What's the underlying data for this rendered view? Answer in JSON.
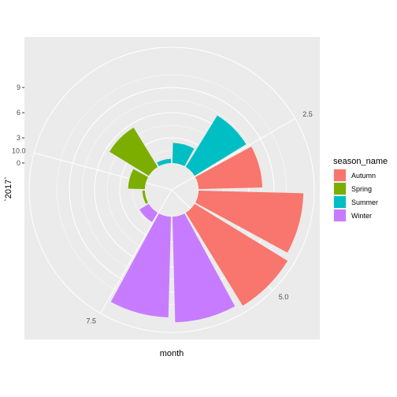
{
  "chart_data": {
    "type": "bar",
    "coord": "polar",
    "xlabel": "month",
    "ylabel": "`2017`",
    "theta_ticks": [
      "2.5",
      "5.0",
      "7.5",
      "10.0"
    ],
    "theta_tick_values": [
      2.5,
      5.0,
      7.5,
      10.0
    ],
    "theta_range": [
      0.5,
      12.5
    ],
    "r_ticks": [
      "0",
      "3",
      "6",
      "9"
    ],
    "r_tick_values": [
      0,
      3,
      6,
      9
    ],
    "r_range": [
      -3.2,
      13.8
    ],
    "grid": true,
    "legend_title": "season_name",
    "legend_position": "right",
    "legend": [
      {
        "name": "Autumn",
        "color": "#F8766D"
      },
      {
        "name": "Spring",
        "color": "#7CAE00"
      },
      {
        "name": "Summer",
        "color": "#00BFC4"
      },
      {
        "name": "Winter",
        "color": "#C77CFF"
      }
    ],
    "bars": [
      {
        "month": 1,
        "value": 2.4,
        "season": "Summer"
      },
      {
        "month": 2,
        "value": 7.2,
        "season": "Summer"
      },
      {
        "month": 3,
        "value": 7.6,
        "season": "Autumn"
      },
      {
        "month": 4,
        "value": 12.5,
        "season": "Autumn"
      },
      {
        "month": 5,
        "value": 13.0,
        "season": "Autumn"
      },
      {
        "month": 6,
        "value": 12.6,
        "season": "Winter"
      },
      {
        "month": 7,
        "value": 12.0,
        "season": "Winter"
      },
      {
        "month": 8,
        "value": 1.3,
        "season": "Winter"
      },
      {
        "month": 9,
        "value": 0.3,
        "season": "Spring"
      },
      {
        "month": 10,
        "value": 2.0,
        "season": "Spring"
      },
      {
        "month": 11,
        "value": 5.5,
        "season": "Spring"
      },
      {
        "month": 12,
        "value": 0.5,
        "season": "Summer"
      }
    ]
  }
}
